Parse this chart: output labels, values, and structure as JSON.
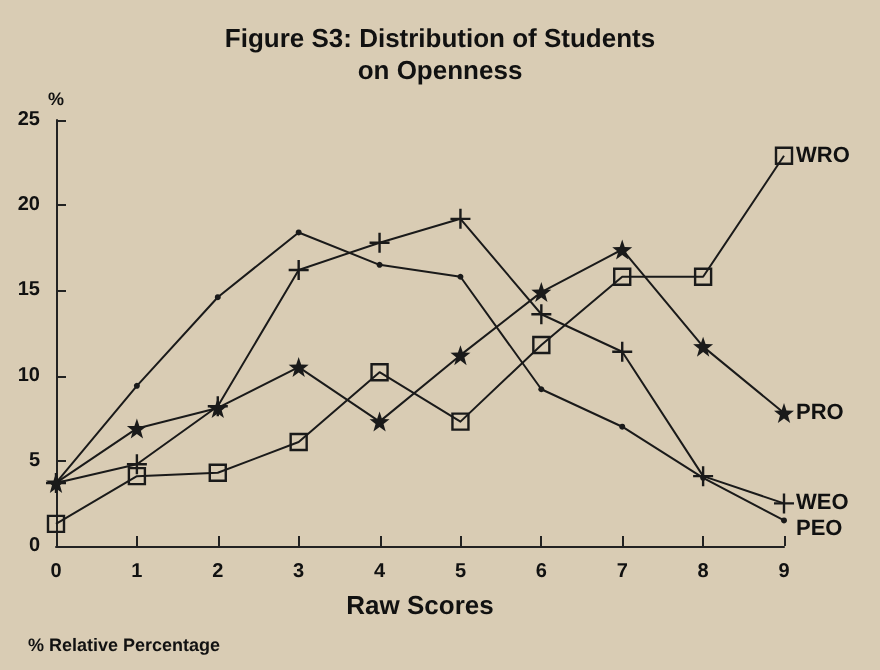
{
  "chart_data": {
    "type": "line",
    "title": "Figure S3: Distribution of Students\non Openness",
    "xlabel": "Raw Scores",
    "ylabel": "%",
    "annotations": [
      "% Relative Percentage"
    ],
    "x": [
      0,
      1,
      2,
      3,
      4,
      5,
      6,
      7,
      8,
      9
    ],
    "xlim": [
      0,
      9
    ],
    "xticks": [
      0,
      1,
      2,
      3,
      4,
      5,
      6,
      7,
      8,
      9
    ],
    "ylim": [
      0,
      25
    ],
    "yticks": [
      0,
      5,
      10,
      15,
      20,
      25
    ],
    "grid": false,
    "legend": false,
    "line_style": "solid",
    "series": [
      {
        "name": "WRO",
        "color": "#1a1a1a",
        "marker": "square",
        "values": [
          1.3,
          4.1,
          4.3,
          6.1,
          10.2,
          7.3,
          11.8,
          15.8,
          15.8,
          22.9
        ]
      },
      {
        "name": "PRO",
        "color": "#1a1a1a",
        "marker": "star",
        "values": [
          3.7,
          6.9,
          8.1,
          10.5,
          7.3,
          11.2,
          14.9,
          17.4,
          11.7,
          7.8
        ]
      },
      {
        "name": "WEO",
        "color": "#1a1a1a",
        "marker": "cross",
        "values": [
          3.7,
          4.8,
          8.2,
          16.2,
          17.8,
          19.2,
          13.6,
          11.4,
          4.1,
          2.5
        ]
      },
      {
        "name": "PEO",
        "color": "#1a1a1a",
        "marker": "circle",
        "values": [
          3.7,
          9.4,
          14.6,
          18.4,
          16.5,
          15.8,
          9.2,
          7.0,
          4.0,
          1.5
        ]
      }
    ]
  }
}
